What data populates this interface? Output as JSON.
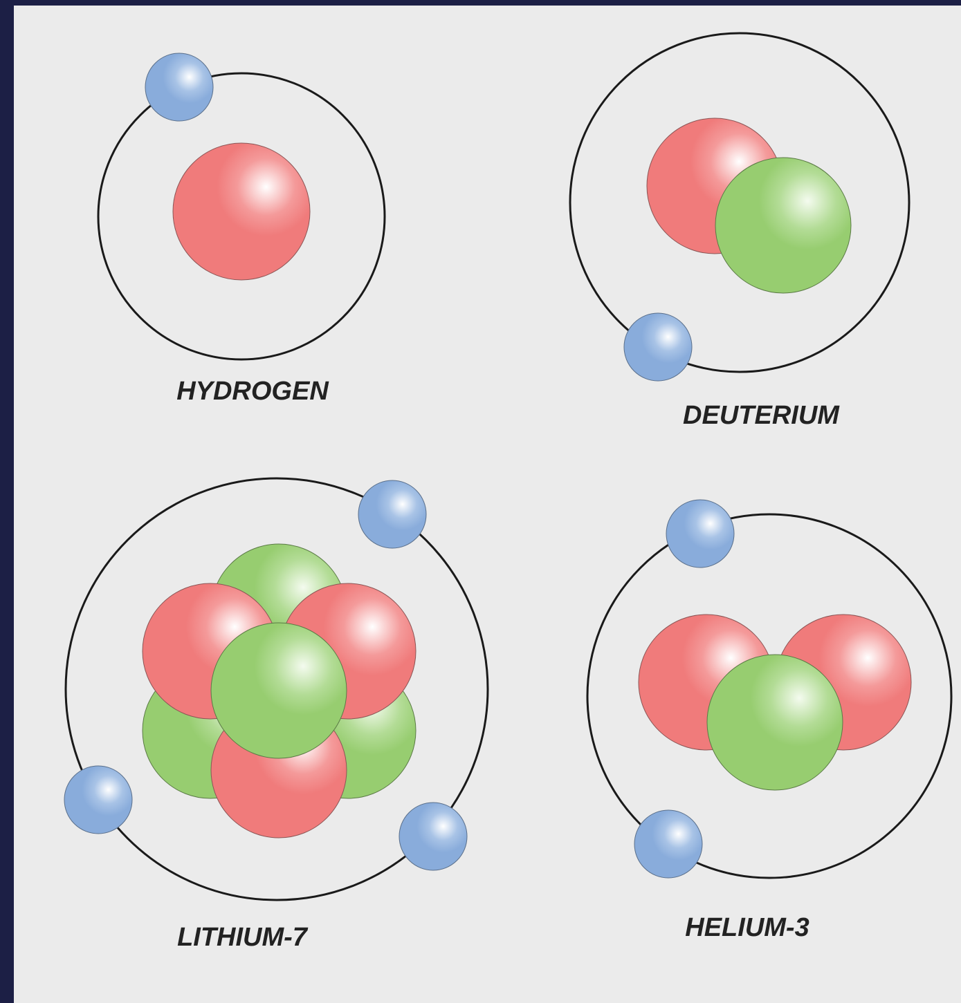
{
  "atoms": [
    {
      "label": "HYDROGEN"
    },
    {
      "label": "DEUTERIUM"
    },
    {
      "label": "LITHIUM-7"
    },
    {
      "label": "HELIUM-3"
    }
  ]
}
